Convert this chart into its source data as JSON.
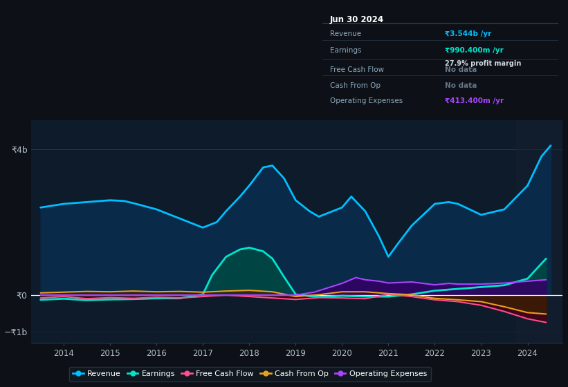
{
  "bg_color": "#0d1117",
  "plot_bg_color": "#0d1b2a",
  "ylim": [
    -1300000000.0,
    4800000000.0
  ],
  "legend": [
    {
      "label": "Revenue",
      "color": "#00bfff"
    },
    {
      "label": "Earnings",
      "color": "#00e5cc"
    },
    {
      "label": "Free Cash Flow",
      "color": "#ff4d8d"
    },
    {
      "label": "Cash From Op",
      "color": "#e8a020"
    },
    {
      "label": "Operating Expenses",
      "color": "#aa44ff"
    }
  ],
  "revenue": {
    "x": [
      2013.5,
      2014.0,
      2014.5,
      2015.0,
      2015.3,
      2015.5,
      2016.0,
      2016.5,
      2017.0,
      2017.3,
      2017.5,
      2017.8,
      2018.0,
      2018.3,
      2018.5,
      2018.75,
      2019.0,
      2019.3,
      2019.5,
      2020.0,
      2020.2,
      2020.5,
      2020.8,
      2021.0,
      2021.2,
      2021.5,
      2022.0,
      2022.3,
      2022.5,
      2023.0,
      2023.5,
      2024.0,
      2024.3,
      2024.5
    ],
    "y": [
      2400000000.0,
      2500000000.0,
      2550000000.0,
      2600000000.0,
      2580000000.0,
      2520000000.0,
      2350000000.0,
      2100000000.0,
      1850000000.0,
      2000000000.0,
      2300000000.0,
      2700000000.0,
      3000000000.0,
      3500000000.0,
      3550000000.0,
      3200000000.0,
      2600000000.0,
      2300000000.0,
      2150000000.0,
      2400000000.0,
      2700000000.0,
      2300000000.0,
      1600000000.0,
      1050000000.0,
      1400000000.0,
      1900000000.0,
      2500000000.0,
      2550000000.0,
      2500000000.0,
      2200000000.0,
      2350000000.0,
      3000000000.0,
      3800000000.0,
      4100000000.0
    ],
    "color": "#00bfff",
    "fill_color": "#0a2a4a",
    "lw": 2.0
  },
  "earnings": {
    "x": [
      2013.5,
      2014.0,
      2014.5,
      2015.0,
      2015.5,
      2016.0,
      2016.5,
      2017.0,
      2017.2,
      2017.5,
      2017.8,
      2018.0,
      2018.3,
      2018.5,
      2018.75,
      2019.0,
      2019.3,
      2019.5,
      2020.0,
      2020.5,
      2021.0,
      2021.5,
      2022.0,
      2022.5,
      2023.0,
      2023.5,
      2024.0,
      2024.4
    ],
    "y": [
      -130000000.0,
      -100000000.0,
      -140000000.0,
      -120000000.0,
      -110000000.0,
      -90000000.0,
      -90000000.0,
      20000000.0,
      550000000.0,
      1050000000.0,
      1250000000.0,
      1300000000.0,
      1200000000.0,
      1000000000.0,
      500000000.0,
      20000000.0,
      -30000000.0,
      -50000000.0,
      -20000000.0,
      -40000000.0,
      -40000000.0,
      20000000.0,
      120000000.0,
      170000000.0,
      220000000.0,
      270000000.0,
      450000000.0,
      1000000000.0
    ],
    "color": "#00e5cc",
    "fill_color": "#004444",
    "lw": 2.0
  },
  "free_cash_flow": {
    "x": [
      2013.5,
      2014.0,
      2014.5,
      2015.0,
      2015.5,
      2016.0,
      2016.5,
      2017.0,
      2017.5,
      2018.0,
      2018.5,
      2019.0,
      2019.5,
      2020.0,
      2020.5,
      2021.0,
      2021.5,
      2022.0,
      2022.5,
      2023.0,
      2023.5,
      2024.0,
      2024.4
    ],
    "y": [
      -80000000.0,
      -40000000.0,
      -100000000.0,
      -70000000.0,
      -90000000.0,
      -60000000.0,
      -80000000.0,
      -40000000.0,
      0.0,
      -40000000.0,
      -80000000.0,
      -120000000.0,
      -70000000.0,
      -80000000.0,
      -100000000.0,
      20000000.0,
      -40000000.0,
      -130000000.0,
      -180000000.0,
      -280000000.0,
      -450000000.0,
      -650000000.0,
      -750000000.0
    ],
    "color": "#ff4d8d",
    "fill_color": "#4a0015",
    "lw": 1.5
  },
  "cash_from_op": {
    "x": [
      2013.5,
      2014.0,
      2014.5,
      2015.0,
      2015.5,
      2016.0,
      2016.5,
      2017.0,
      2017.5,
      2018.0,
      2018.5,
      2019.0,
      2019.5,
      2020.0,
      2020.5,
      2021.0,
      2021.5,
      2022.0,
      2022.5,
      2023.0,
      2023.5,
      2024.0,
      2024.4
    ],
    "y": [
      60000000.0,
      80000000.0,
      100000000.0,
      90000000.0,
      110000000.0,
      90000000.0,
      100000000.0,
      80000000.0,
      110000000.0,
      130000000.0,
      90000000.0,
      -40000000.0,
      10000000.0,
      90000000.0,
      90000000.0,
      40000000.0,
      10000000.0,
      -90000000.0,
      -130000000.0,
      -180000000.0,
      -320000000.0,
      -480000000.0,
      -520000000.0
    ],
    "color": "#e8a020",
    "fill_color": "#3a2200",
    "lw": 1.5
  },
  "op_expenses": {
    "x": [
      2013.5,
      2014.0,
      2015.0,
      2016.0,
      2017.0,
      2018.0,
      2019.0,
      2019.4,
      2020.0,
      2020.3,
      2020.5,
      2020.8,
      2021.0,
      2021.5,
      2022.0,
      2022.3,
      2022.5,
      2023.0,
      2023.5,
      2024.0,
      2024.4
    ],
    "y": [
      0.0,
      0.0,
      0.0,
      0.0,
      0.0,
      0.0,
      0.0,
      80000000.0,
      320000000.0,
      480000000.0,
      420000000.0,
      380000000.0,
      330000000.0,
      360000000.0,
      280000000.0,
      320000000.0,
      300000000.0,
      300000000.0,
      330000000.0,
      380000000.0,
      420000000.0
    ],
    "color": "#aa44ff",
    "fill_color": "#330066",
    "lw": 1.5
  },
  "tooltip": {
    "title": "Jun 30 2024",
    "rows": [
      {
        "label": "Revenue",
        "value": "₹3.544b /yr",
        "value_color": "#00bfff",
        "sub": null
      },
      {
        "label": "Earnings",
        "value": "₹990.400m /yr",
        "value_color": "#00e5cc",
        "sub": "27.9% profit margin"
      },
      {
        "label": "Free Cash Flow",
        "value": "No data",
        "value_color": "#667788",
        "sub": null
      },
      {
        "label": "Cash From Op",
        "value": "No data",
        "value_color": "#667788",
        "sub": null
      },
      {
        "label": "Operating Expenses",
        "value": "₹413.400m /yr",
        "value_color": "#aa44ff",
        "sub": null
      }
    ]
  }
}
